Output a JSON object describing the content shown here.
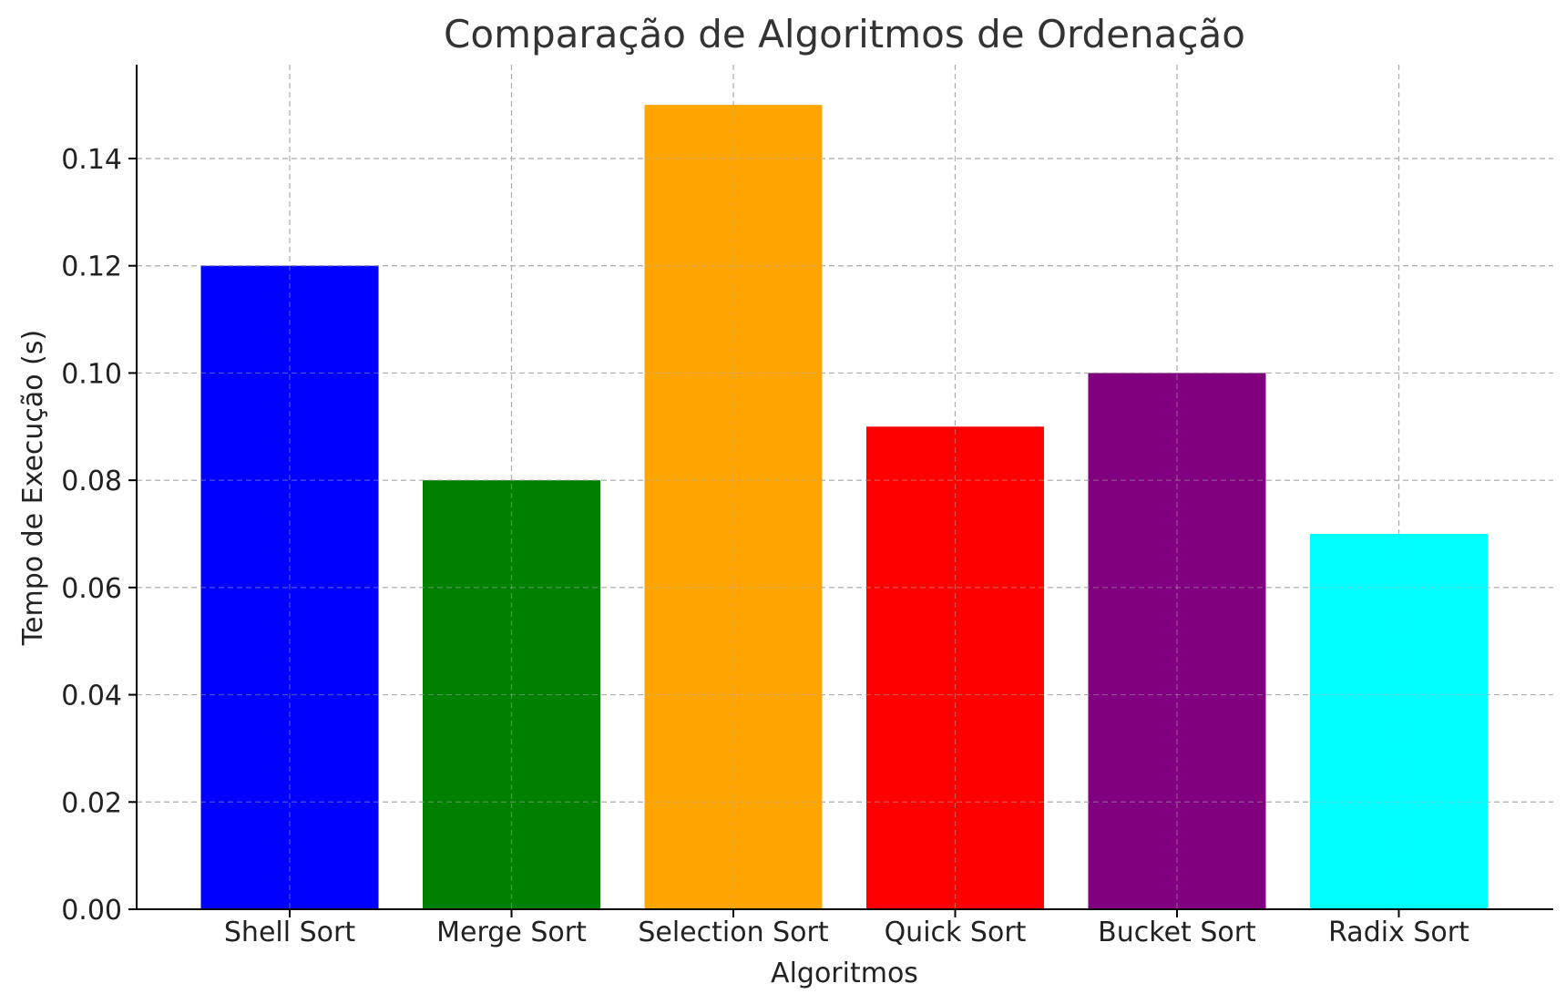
{
  "chart_data": {
    "type": "bar",
    "title": "Comparação de Algoritmos de Ordenação",
    "xlabel": "Algoritmos",
    "ylabel": "Tempo de Execução (s)",
    "categories": [
      "Shell Sort",
      "Merge Sort",
      "Selection Sort",
      "Quick Sort",
      "Bucket Sort",
      "Radix Sort"
    ],
    "values": [
      0.12,
      0.08,
      0.15,
      0.09,
      0.1,
      0.07
    ],
    "colors": [
      "#0000ff",
      "#008000",
      "#ffa500",
      "#ff0000",
      "#800080",
      "#00ffff"
    ],
    "ylim": [
      0,
      0.1575
    ],
    "yticks": [
      0.0,
      0.02,
      0.04,
      0.06,
      0.08,
      0.1,
      0.12,
      0.14
    ],
    "ytick_labels": [
      "0.00",
      "0.02",
      "0.04",
      "0.06",
      "0.08",
      "0.10",
      "0.12",
      "0.14"
    ],
    "grid": true,
    "legend": "none"
  }
}
